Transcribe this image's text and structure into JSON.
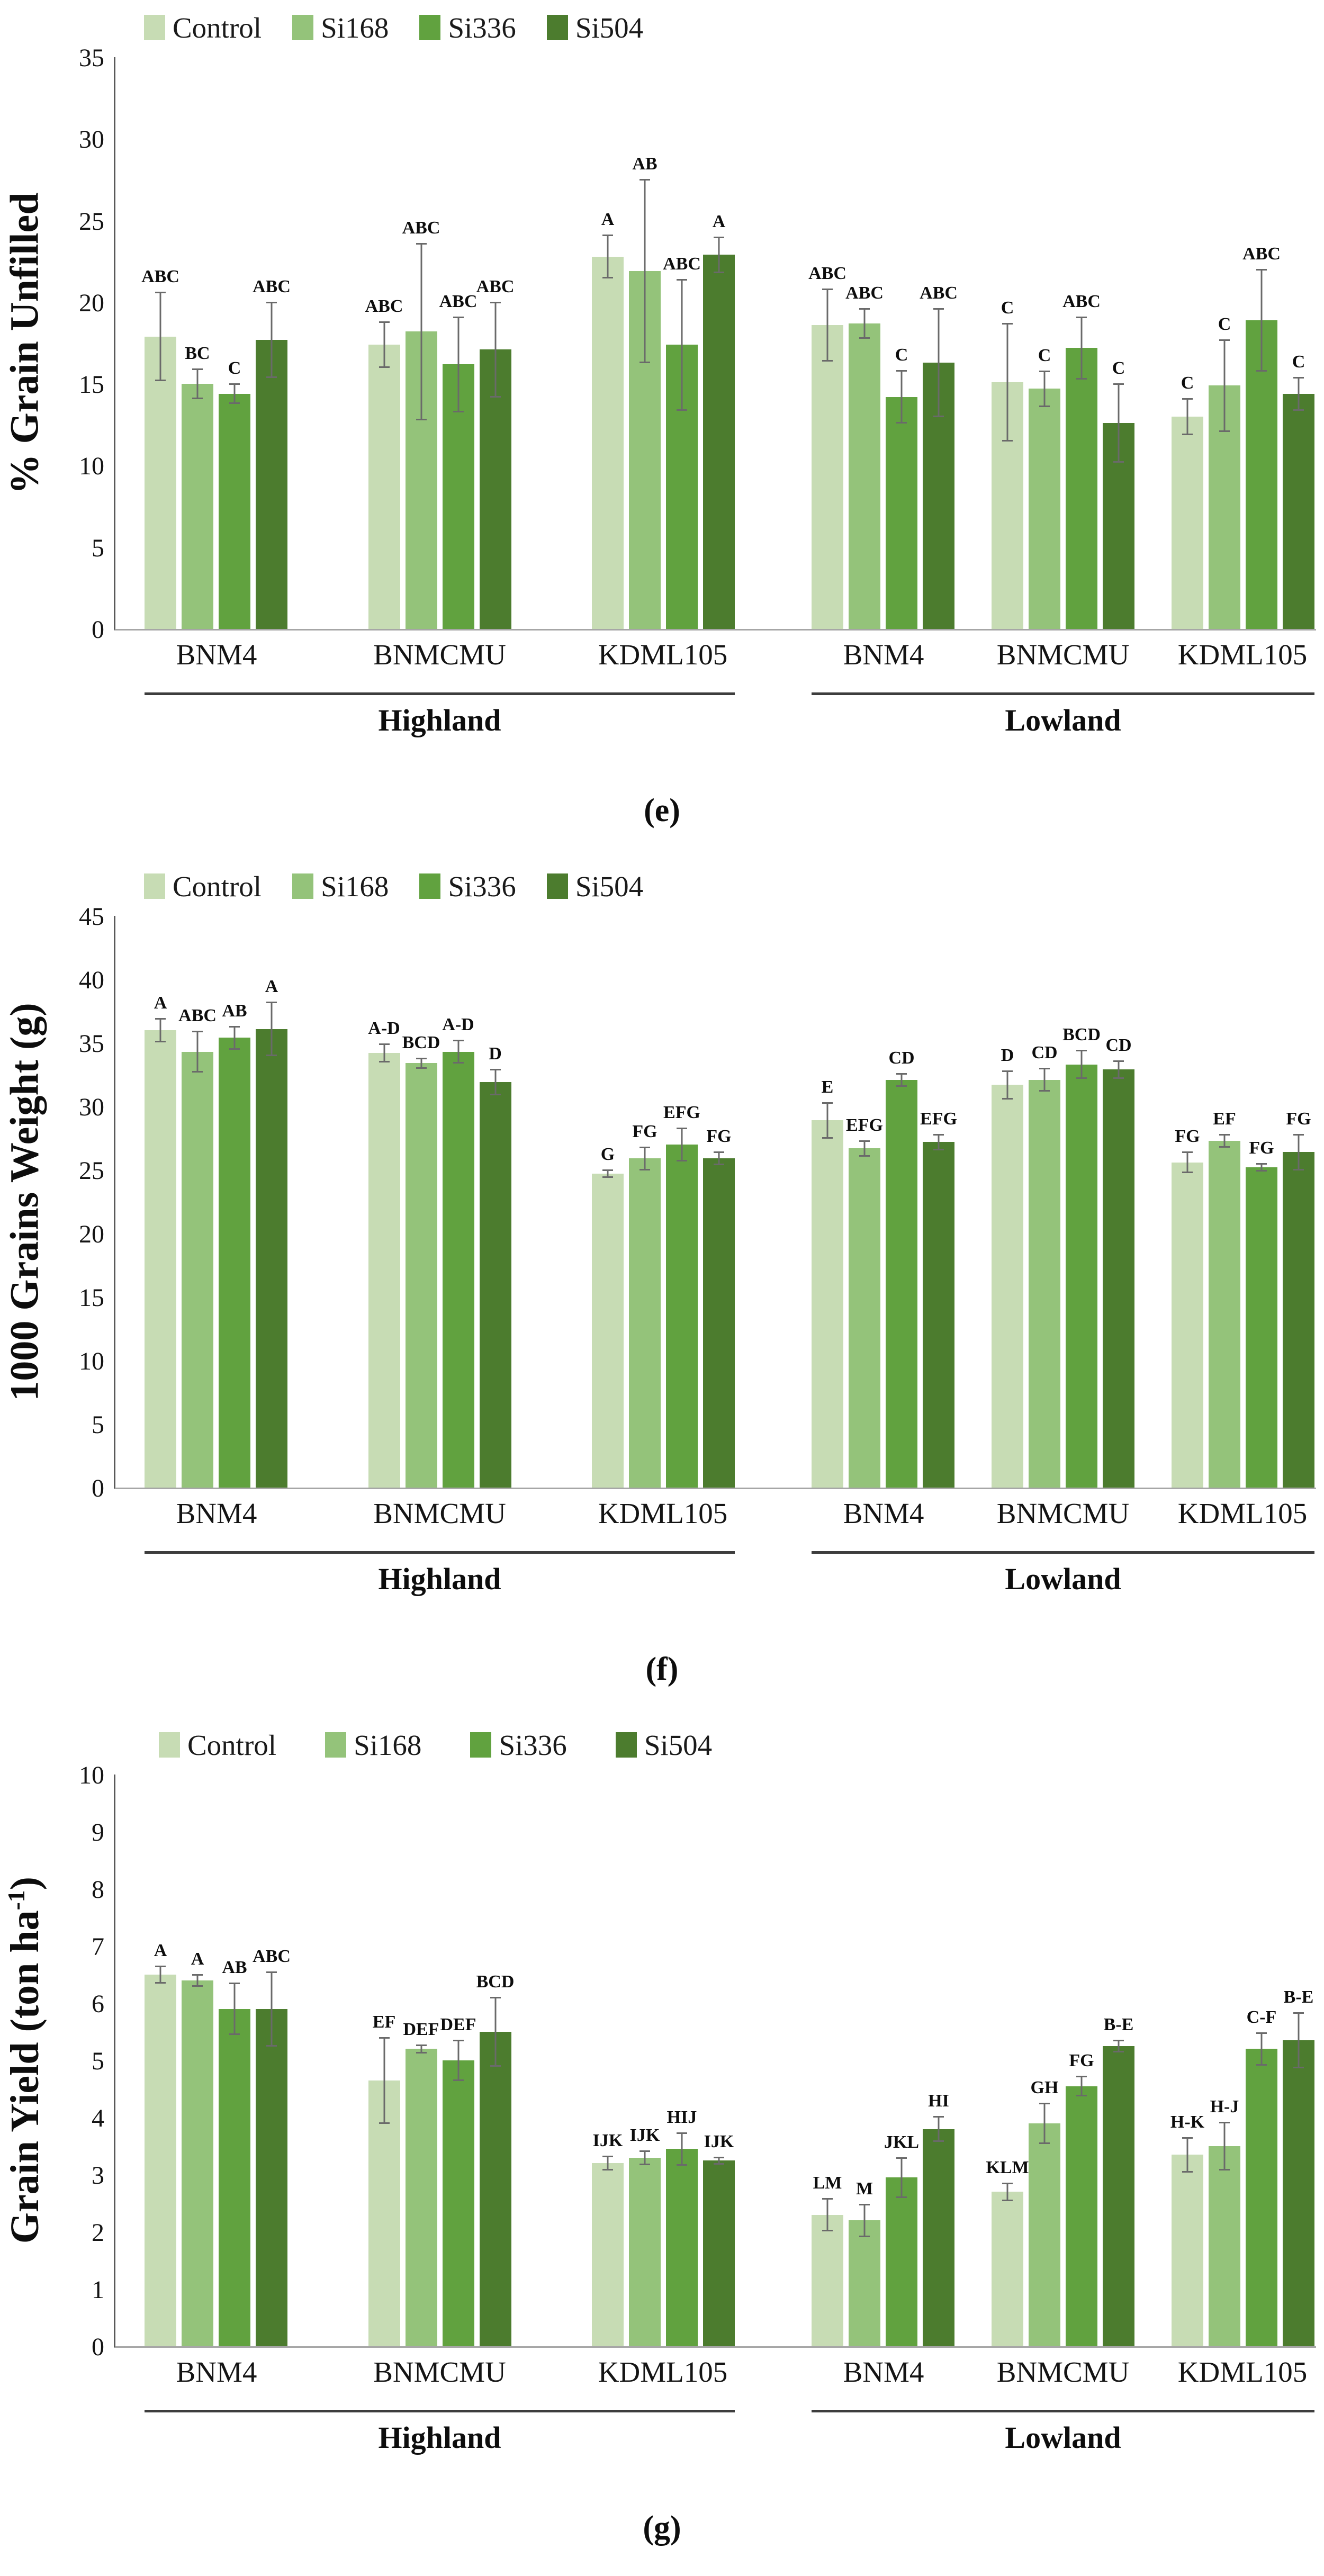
{
  "legend_items": [
    {
      "label": "Control",
      "color": "#c7dcb4"
    },
    {
      "label": "Si168",
      "color": "#94c37a"
    },
    {
      "label": "Si336",
      "color": "#61a23f"
    },
    {
      "label": "Si504",
      "color": "#4c7c2e"
    }
  ],
  "axis_line_color": "#595959",
  "baseline_color": "#a6a6a6",
  "error_bar_color": "#6a6a6a",
  "chart_data": [
    {
      "type": "bar",
      "panel": "(e)",
      "ylabel": "% Grain Unfilled",
      "ylabel_sup": "",
      "ylabel_close": "",
      "ylim": [
        0,
        35
      ],
      "ystep": 5,
      "grid": false,
      "legend_position": "top-left",
      "legend": [
        "Control",
        "Si168",
        "Si336",
        "Si504"
      ],
      "groups": [
        {
          "location": "Highland",
          "categories": [
            "BNM4",
            "BNMCMU",
            "KDML105"
          ],
          "series": [
            {
              "name": "Control",
              "values": [
                17.9,
                17.4,
                22.8
              ],
              "errors": [
                2.7,
                1.4,
                1.3
              ],
              "sig": [
                "ABC",
                "ABC",
                "A"
              ]
            },
            {
              "name": "Si168",
              "values": [
                15.0,
                18.2,
                21.9
              ],
              "errors": [
                0.9,
                5.4,
                5.6
              ],
              "sig": [
                "BC",
                "ABC",
                "AB"
              ]
            },
            {
              "name": "Si336",
              "values": [
                14.4,
                16.2,
                17.4
              ],
              "errors": [
                0.6,
                2.9,
                4.0
              ],
              "sig": [
                "C",
                "ABC",
                "ABC"
              ]
            },
            {
              "name": "Si504",
              "values": [
                17.7,
                17.1,
                22.9
              ],
              "errors": [
                2.3,
                2.9,
                1.1
              ],
              "sig": [
                "ABC",
                "ABC",
                "A"
              ]
            }
          ]
        },
        {
          "location": "Lowland",
          "categories": [
            "BNM4",
            "BNMCMU",
            "KDML105"
          ],
          "series": [
            {
              "name": "Control",
              "values": [
                18.6,
                15.1,
                13.0
              ],
              "errors": [
                2.2,
                3.6,
                1.1
              ],
              "sig": [
                "ABC",
                "C",
                "C"
              ]
            },
            {
              "name": "Si168",
              "values": [
                18.7,
                14.7,
                14.9
              ],
              "errors": [
                0.9,
                1.1,
                2.8
              ],
              "sig": [
                "ABC",
                "C",
                "C"
              ]
            },
            {
              "name": "Si336",
              "values": [
                14.2,
                17.2,
                18.9
              ],
              "errors": [
                1.6,
                1.9,
                3.1
              ],
              "sig": [
                "C",
                "ABC",
                "ABC"
              ]
            },
            {
              "name": "Si504",
              "values": [
                16.3,
                12.6,
                14.4
              ],
              "errors": [
                3.3,
                2.4,
                1.0
              ],
              "sig": [
                "ABC",
                "C",
                "C"
              ]
            }
          ]
        }
      ]
    },
    {
      "type": "bar",
      "panel": "(f)",
      "ylabel": "1000 Grains Weight (g)",
      "ylabel_sup": "",
      "ylabel_close": "",
      "ylim": [
        0,
        45
      ],
      "ystep": 5,
      "grid": false,
      "legend_position": "top-left",
      "legend": [
        "Control",
        "Si168",
        "Si336",
        "Si504"
      ],
      "groups": [
        {
          "location": "Highland",
          "categories": [
            "BNM4",
            "BNMCMU",
            "KDML105"
          ],
          "series": [
            {
              "name": "Control",
              "values": [
                36.0,
                34.2,
                24.7
              ],
              "errors": [
                0.9,
                0.7,
                0.3
              ],
              "sig": [
                "A",
                "A-D",
                "G"
              ]
            },
            {
              "name": "Si168",
              "values": [
                34.3,
                33.4,
                25.9
              ],
              "errors": [
                1.6,
                0.4,
                0.9
              ],
              "sig": [
                "ABC",
                "BCD",
                "FG"
              ]
            },
            {
              "name": "Si336",
              "values": [
                35.4,
                34.3,
                27.0
              ],
              "errors": [
                0.9,
                0.9,
                1.3
              ],
              "sig": [
                "AB",
                "A-D",
                "EFG"
              ]
            },
            {
              "name": "Si504",
              "values": [
                36.1,
                31.9,
                25.9
              ],
              "errors": [
                2.1,
                1.0,
                0.5
              ],
              "sig": [
                "A",
                "D",
                "FG"
              ]
            }
          ]
        },
        {
          "location": "Lowland",
          "categories": [
            "BNM4",
            "BNMCMU",
            "KDML105"
          ],
          "series": [
            {
              "name": "Control",
              "values": [
                28.9,
                31.7,
                25.6
              ],
              "errors": [
                1.4,
                1.1,
                0.8
              ],
              "sig": [
                "E",
                "D",
                "FG"
              ]
            },
            {
              "name": "Si168",
              "values": [
                26.7,
                32.1,
                27.3
              ],
              "errors": [
                0.6,
                0.9,
                0.5
              ],
              "sig": [
                "EFG",
                "CD",
                "EF"
              ]
            },
            {
              "name": "Si336",
              "values": [
                32.1,
                33.3,
                25.2
              ],
              "errors": [
                0.5,
                1.1,
                0.3
              ],
              "sig": [
                "CD",
                "BCD",
                "FG"
              ]
            },
            {
              "name": "Si504",
              "values": [
                27.2,
                32.9,
                26.4
              ],
              "errors": [
                0.6,
                0.7,
                1.4
              ],
              "sig": [
                "EFG",
                "CD",
                "FG"
              ]
            }
          ]
        }
      ]
    },
    {
      "type": "bar",
      "panel": "(g)",
      "ylabel": "Grain Yield  (ton ha",
      "ylabel_sup": "-1",
      "ylabel_close": ")",
      "ylim": [
        0,
        10
      ],
      "ystep": 1,
      "grid": false,
      "legend_position": "top-left",
      "legend": [
        "Control",
        "Si168",
        "Si336",
        "Si504"
      ],
      "groups": [
        {
          "location": "Highland",
          "categories": [
            "BNM4",
            "BNMCMU",
            "KDML105"
          ],
          "series": [
            {
              "name": "Control",
              "values": [
                6.5,
                4.65,
                3.2
              ],
              "errors": [
                0.15,
                0.75,
                0.12
              ],
              "sig": [
                "A",
                "EF",
                "IJK"
              ]
            },
            {
              "name": "Si168",
              "values": [
                6.4,
                5.2,
                3.3
              ],
              "errors": [
                0.1,
                0.07,
                0.12
              ],
              "sig": [
                "A",
                "DEF",
                "IJK"
              ]
            },
            {
              "name": "Si336",
              "values": [
                5.9,
                5.0,
                3.45
              ],
              "errors": [
                0.45,
                0.35,
                0.28
              ],
              "sig": [
                "AB",
                "DEF",
                "HIJ"
              ]
            },
            {
              "name": "Si504",
              "values": [
                5.9,
                5.5,
                3.25
              ],
              "errors": [
                0.65,
                0.6,
                0.06
              ],
              "sig": [
                "ABC",
                "BCD",
                "IJK"
              ]
            }
          ]
        },
        {
          "location": "Lowland",
          "categories": [
            "BNM4",
            "BNMCMU",
            "KDML105"
          ],
          "series": [
            {
              "name": "Control",
              "values": [
                2.3,
                2.7,
                3.35
              ],
              "errors": [
                0.28,
                0.15,
                0.3
              ],
              "sig": [
                "LM",
                "KLM",
                "H-K"
              ]
            },
            {
              "name": "Si168",
              "values": [
                2.2,
                3.9,
                3.5
              ],
              "errors": [
                0.28,
                0.35,
                0.42
              ],
              "sig": [
                "M",
                "GH",
                "H-J"
              ]
            },
            {
              "name": "Si336",
              "values": [
                2.95,
                4.55,
                5.2
              ],
              "errors": [
                0.35,
                0.17,
                0.28
              ],
              "sig": [
                "JKL",
                "FG",
                "C-F"
              ]
            },
            {
              "name": "Si504",
              "values": [
                3.8,
                5.25,
                5.35
              ],
              "errors": [
                0.22,
                0.1,
                0.48
              ],
              "sig": [
                "HI",
                "B-E",
                "B-E"
              ]
            }
          ]
        }
      ]
    }
  ]
}
